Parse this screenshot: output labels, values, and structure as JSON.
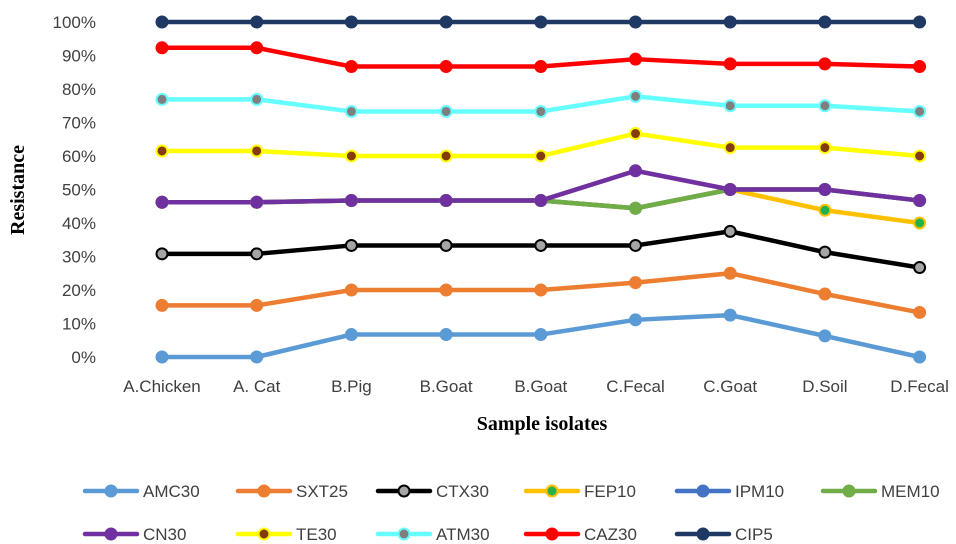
{
  "chart_data": {
    "type": "line",
    "xlabel": "Sample isolates",
    "ylabel": "Resistance",
    "ylim": [
      0,
      100
    ],
    "yticks": [
      "0%",
      "10%",
      "20%",
      "30%",
      "40%",
      "50%",
      "60%",
      "70%",
      "80%",
      "90%",
      "100%"
    ],
    "categories": [
      "A.Chicken",
      "A. Cat",
      "B.Pig",
      "B.Goat",
      "B.Goat",
      "C.Fecal",
      "C.Goat",
      "D.Soil",
      "D.Fecal"
    ],
    "legend_position": "bottom",
    "grid": false,
    "series": [
      {
        "name": "AMC30",
        "color": "#5B9BD5",
        "marker": "#5B9BD5",
        "values": [
          0,
          0,
          6.7,
          6.7,
          6.7,
          11.1,
          12.5,
          6.3,
          0
        ]
      },
      {
        "name": "SXT25",
        "color": "#ED7D31",
        "marker": "#ED7D31",
        "values": [
          15.4,
          15.4,
          20,
          20,
          20,
          22.2,
          25,
          18.8,
          13.3
        ]
      },
      {
        "name": "CTX30",
        "color": "#000000",
        "marker": "#A5A5A5",
        "values": [
          30.8,
          30.8,
          33.3,
          33.3,
          33.3,
          33.3,
          37.5,
          31.3,
          26.7
        ]
      },
      {
        "name": "FEP10",
        "color": "#FFC000",
        "marker": "#22B14C",
        "values": [
          46.2,
          46.2,
          46.7,
          46.7,
          46.7,
          44.4,
          50,
          43.8,
          40
        ]
      },
      {
        "name": "IPM10",
        "color": "#4472C4",
        "marker": "#4472C4",
        "values": [
          46.2,
          46.2,
          46.7,
          46.7,
          46.7,
          44.4,
          50,
          50,
          46.7
        ]
      },
      {
        "name": "MEM10",
        "color": "#70AD47",
        "marker": "#70AD47",
        "values": [
          46.2,
          46.2,
          46.7,
          46.7,
          46.7,
          44.4,
          50,
          50,
          46.7
        ]
      },
      {
        "name": "CN30",
        "color": "#7030A0",
        "marker": "#7030A0",
        "values": [
          46.2,
          46.2,
          46.7,
          46.7,
          46.7,
          55.6,
          50,
          50,
          46.7
        ]
      },
      {
        "name": "TE30",
        "color": "#FFFF00",
        "marker": "#843C0C",
        "values": [
          61.5,
          61.5,
          60,
          60,
          60,
          66.7,
          62.5,
          62.5,
          60
        ]
      },
      {
        "name": "ATM30",
        "color": "#66FFFF",
        "marker": "#7F7F7F",
        "values": [
          76.9,
          76.9,
          73.3,
          73.3,
          73.3,
          77.8,
          75,
          75,
          73.3
        ]
      },
      {
        "name": "CAZ30",
        "color": "#FF0000",
        "marker": "#FF0000",
        "values": [
          92.3,
          92.3,
          86.7,
          86.7,
          86.7,
          88.9,
          87.5,
          87.5,
          86.7
        ]
      },
      {
        "name": "CIP5",
        "color": "#203864",
        "marker": "#203864",
        "values": [
          100,
          100,
          100,
          100,
          100,
          100,
          100,
          100,
          100
        ]
      }
    ]
  }
}
